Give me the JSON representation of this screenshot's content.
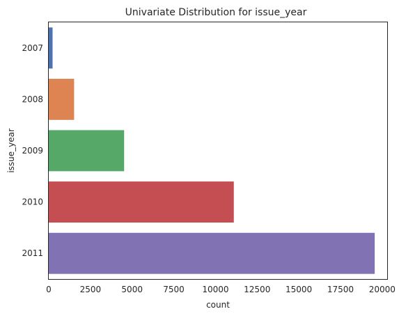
{
  "chart_data": {
    "type": "bar",
    "orientation": "horizontal",
    "title": "Univariate Distribution for issue_year",
    "xlabel": "count",
    "ylabel": "issue_year",
    "categories": [
      "2007",
      "2008",
      "2009",
      "2010",
      "2011"
    ],
    "values": [
      230,
      1520,
      4520,
      11100,
      19550
    ],
    "xlim": [
      0,
      20300
    ],
    "xticks": [
      0,
      2500,
      5000,
      7500,
      10000,
      12500,
      15000,
      17500,
      20000
    ],
    "grid": false,
    "legend": "none",
    "colors": [
      "#4c72b0",
      "#dd8452",
      "#55a868",
      "#c44e52",
      "#8172b3"
    ]
  }
}
